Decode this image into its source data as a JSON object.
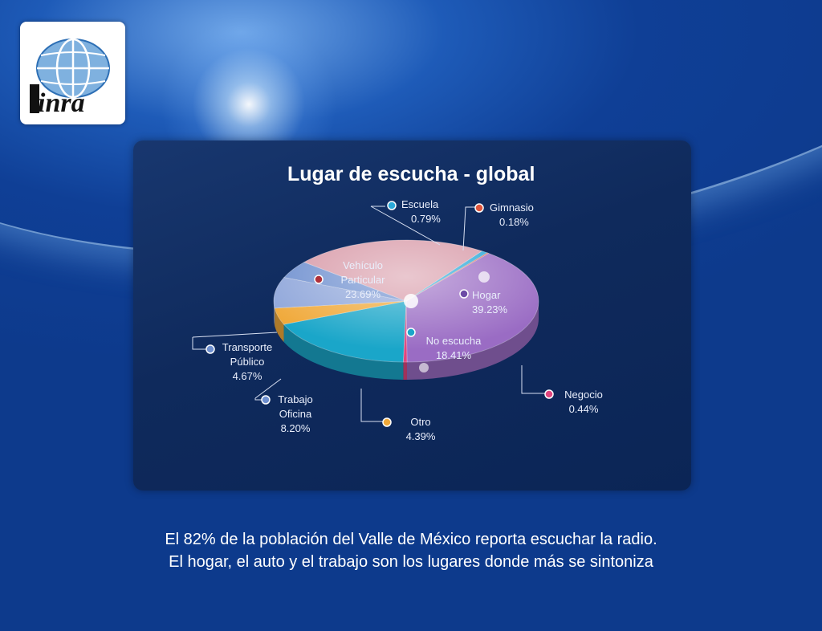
{
  "brand": {
    "logo_text": "inra"
  },
  "chart_data": {
    "type": "pie",
    "title": "Lugar de escucha - global",
    "slices": [
      {
        "key": "hogar",
        "name": "Hogar",
        "value": 39.23,
        "label": "39.23%",
        "color": "#9a6cc4"
      },
      {
        "key": "negocio",
        "name": "Negocio",
        "value": 0.44,
        "label": "0.44%",
        "color": "#e0457e"
      },
      {
        "key": "no_escucha",
        "name": "No escucha",
        "value": 18.41,
        "label": "18.41%",
        "color": "#1aa6c9"
      },
      {
        "key": "otro",
        "name": "Otro",
        "value": 4.39,
        "label": "4.39%",
        "color": "#f0a93a"
      },
      {
        "key": "trabajo",
        "name": "Trabajo Oficina",
        "value": 8.2,
        "label": "8.20%",
        "color": "#8fa6da"
      },
      {
        "key": "transporte",
        "name": "Transporte Público",
        "value": 4.67,
        "label": "4.67%",
        "color": "#6e8fcf"
      },
      {
        "key": "vehiculo",
        "name": "Vehículo Particular",
        "value": 23.69,
        "label": "23.69%",
        "color": "#d89aa8"
      },
      {
        "key": "escuela",
        "name": "Escuela",
        "value": 0.79,
        "label": "0.79%",
        "color": "#2aa8d8"
      },
      {
        "key": "gimnasio",
        "name": "Gimnasio",
        "value": 0.18,
        "label": "0.18%",
        "color": "#e0553c"
      }
    ]
  },
  "labels": {
    "escuela": {
      "name": "Escuela",
      "pct": "0.79%"
    },
    "gimnasio": {
      "name": "Gimnasio",
      "pct": "0.18%"
    },
    "vehiculo": {
      "name1": "Vehículo",
      "name2": "Particular",
      "pct": "23.69%"
    },
    "hogar": {
      "name": "Hogar",
      "pct": "39.23%"
    },
    "no_escucha": {
      "name": "No escucha",
      "pct": "18.41%"
    },
    "transporte": {
      "name1": "Transporte",
      "name2": "Público",
      "pct": "4.67%"
    },
    "trabajo": {
      "name1": "Trabajo",
      "name2": "Oficina",
      "pct": "8.20%"
    },
    "otro": {
      "name": "Otro",
      "pct": "4.39%"
    },
    "negocio": {
      "name": "Negocio",
      "pct": "0.44%"
    }
  },
  "caption": {
    "line1": "El 82% de la población del Valle de México reporta escuchar la radio.",
    "line2": "El hogar, el auto y el trabajo  son los lugares donde más se sintoniza"
  }
}
